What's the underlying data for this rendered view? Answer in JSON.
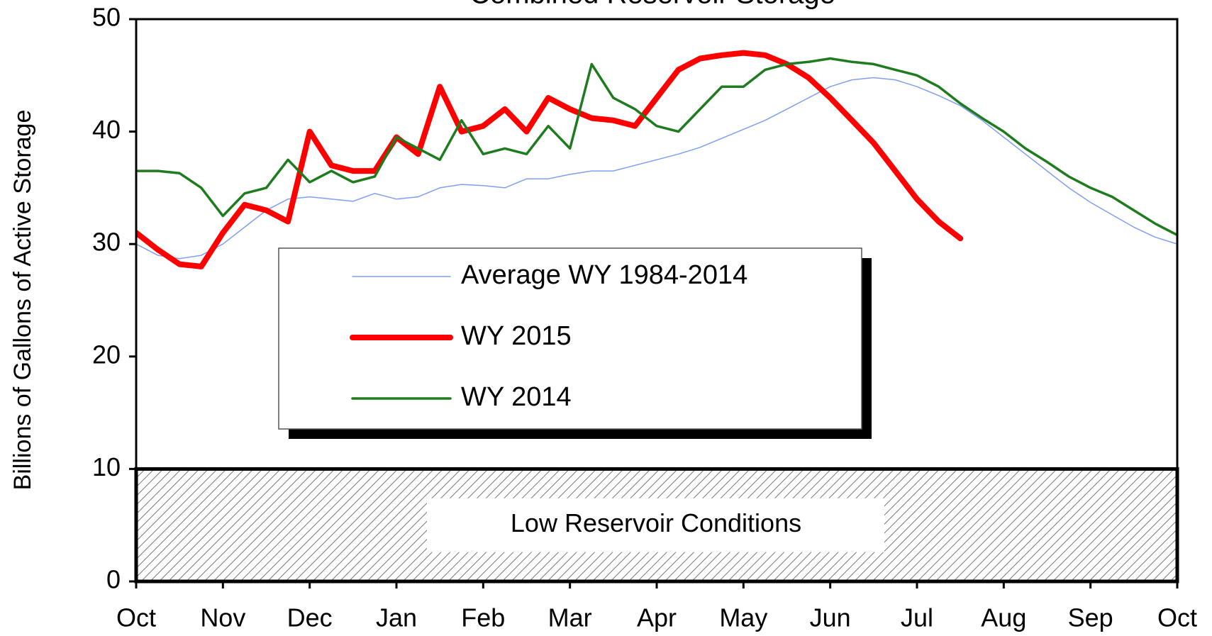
{
  "chart_data": {
    "type": "line",
    "title": "Combined Reservoir Storage",
    "y_label": "Billions of Gallons of Active Storage",
    "x": [
      0,
      0.25,
      0.5,
      0.75,
      1,
      1.25,
      1.5,
      1.75,
      2,
      2.25,
      2.5,
      2.75,
      3,
      3.25,
      3.5,
      3.75,
      4,
      4.25,
      4.5,
      4.75,
      5,
      5.25,
      5.5,
      5.75,
      6,
      6.25,
      6.5,
      6.75,
      7,
      7.25,
      7.5,
      7.75,
      8,
      8.25,
      8.5,
      8.75,
      9,
      9.25,
      9.5,
      9.75,
      10,
      10.25,
      10.5,
      10.75,
      11,
      11.25,
      11.5,
      11.75,
      12
    ],
    "xlim": [
      0,
      12
    ],
    "xticks": [
      {
        "value": 0,
        "label": "Oct"
      },
      {
        "value": 1,
        "label": "Nov"
      },
      {
        "value": 2,
        "label": "Dec"
      },
      {
        "value": 3,
        "label": "Jan"
      },
      {
        "value": 4,
        "label": "Feb"
      },
      {
        "value": 5,
        "label": "Mar"
      },
      {
        "value": 6,
        "label": "Apr"
      },
      {
        "value": 7,
        "label": "May"
      },
      {
        "value": 8,
        "label": "Jun"
      },
      {
        "value": 9,
        "label": "Jul"
      },
      {
        "value": 10,
        "label": "Aug"
      },
      {
        "value": 11,
        "label": "Sep"
      },
      {
        "value": 12,
        "label": "Oct"
      }
    ],
    "ylim": [
      0,
      50
    ],
    "yticks": [
      0,
      10,
      20,
      30,
      40,
      50
    ],
    "series": [
      {
        "name": "Average WY 1984-2014",
        "color": "#7f9ff5",
        "width": 1.5,
        "values": [
          30,
          29,
          28.7,
          29,
          30,
          31.5,
          33,
          34,
          34.2,
          34,
          33.8,
          34.5,
          34,
          34.2,
          35,
          35.3,
          35.2,
          35,
          35.8,
          35.8,
          36.2,
          36.5,
          36.5,
          37,
          37.5,
          38,
          38.6,
          39.4,
          40.2,
          41,
          42,
          43,
          44,
          44.6,
          44.8,
          44.6,
          44,
          43.2,
          42.3,
          41,
          39.5,
          38,
          36.5,
          35,
          33.7,
          32.6,
          31.5,
          30.6,
          30
        ]
      },
      {
        "name": "WY 2015",
        "color": "#ff0000",
        "width": 8,
        "values": [
          31,
          29.5,
          28.2,
          28,
          31,
          33.5,
          33,
          32,
          40,
          37,
          36.5,
          36.5,
          39.5,
          38,
          44,
          40,
          40.5,
          42,
          40,
          43,
          42,
          41.2,
          41,
          40.5,
          43,
          45.5,
          46.5,
          46.8,
          47,
          46.8,
          46,
          44.8,
          43,
          41,
          39,
          36.5,
          34,
          32,
          30.5,
          null,
          null,
          null,
          null,
          null,
          null,
          null,
          null,
          null,
          null
        ]
      },
      {
        "name": "WY 2014",
        "color": "#1e7b1e",
        "width": 3.5,
        "values": [
          36.5,
          36.5,
          36.3,
          35,
          32.5,
          34.5,
          35,
          37.5,
          35.5,
          36.5,
          35.5,
          36,
          39.5,
          38.5,
          37.5,
          41,
          38,
          38.5,
          38,
          40.5,
          38.5,
          46,
          43,
          42,
          40.5,
          40,
          42,
          44,
          44,
          45.5,
          46,
          46.2,
          46.5,
          46.2,
          46,
          45.5,
          45,
          44,
          42.5,
          41.2,
          40,
          38.5,
          37.3,
          36,
          35,
          34.2,
          33,
          31.8,
          30.8
        ]
      }
    ],
    "legend": "center-left",
    "grid": false,
    "annotations": [
      {
        "text": "Low Reservoir Conditions",
        "y_range": [
          0,
          10
        ]
      }
    ]
  }
}
